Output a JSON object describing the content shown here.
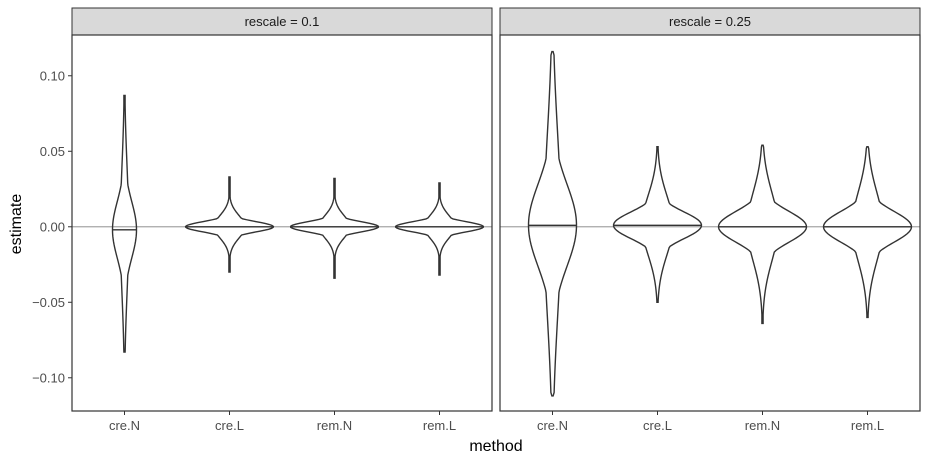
{
  "chart_data": {
    "type": "violin",
    "xlabel": "method",
    "ylabel": "estimate",
    "categories": [
      "cre.N",
      "cre.L",
      "rem.N",
      "rem.L"
    ],
    "ylim": [
      -0.122,
      0.127
    ],
    "yticks": [
      0.1,
      0.05,
      0.0,
      -0.05,
      -0.1
    ],
    "ytick_labels": [
      "0.10",
      "0.05",
      "0.00",
      "−0.05",
      "−0.10"
    ],
    "reference_line_y": 0.0,
    "grid": false,
    "colors": {
      "outline": "#333333",
      "reference": "#a6a6a6",
      "strip_fill": "#d9d9d9",
      "panel_border": "#333333"
    },
    "panels": [
      {
        "strip": "rescale = 0.1",
        "violins": [
          {
            "category": "cre.N",
            "min": -0.083,
            "max": 0.087,
            "median": -0.002,
            "iqr": [
              -0.03,
              0.025
            ]
          },
          {
            "category": "cre.L",
            "min": -0.03,
            "max": 0.033,
            "median": 0.0,
            "iqr": [
              -0.005,
              0.005
            ]
          },
          {
            "category": "rem.N",
            "min": -0.034,
            "max": 0.032,
            "median": 0.0,
            "iqr": [
              -0.005,
              0.005
            ]
          },
          {
            "category": "rem.L",
            "min": -0.032,
            "max": 0.029,
            "median": 0.0,
            "iqr": [
              -0.005,
              0.005
            ]
          }
        ]
      },
      {
        "strip": "rescale = 0.25",
        "violins": [
          {
            "category": "cre.N",
            "min": -0.112,
            "max": 0.116,
            "median": 0.001,
            "iqr": [
              -0.04,
              0.04
            ]
          },
          {
            "category": "cre.L",
            "min": -0.05,
            "max": 0.053,
            "median": 0.001,
            "iqr": [
              -0.013,
              0.013
            ]
          },
          {
            "category": "rem.N",
            "min": -0.064,
            "max": 0.054,
            "median": 0.0,
            "iqr": [
              -0.015,
              0.015
            ]
          },
          {
            "category": "rem.L",
            "min": -0.06,
            "max": 0.053,
            "median": 0.0,
            "iqr": [
              -0.015,
              0.015
            ]
          }
        ]
      }
    ]
  }
}
